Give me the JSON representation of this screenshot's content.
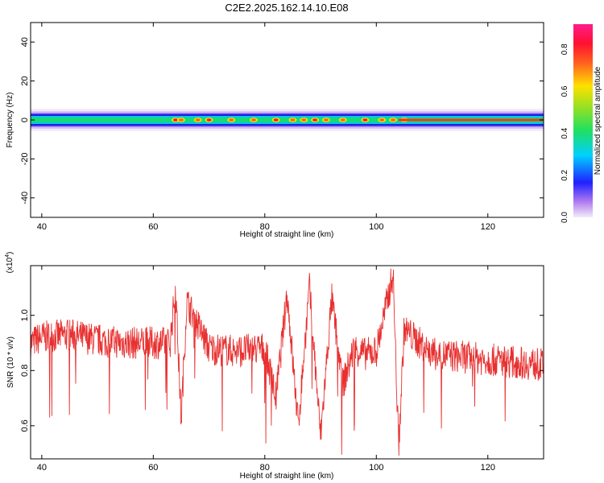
{
  "title": "C2E2.2025.162.14.10.E08",
  "chart_data": [
    {
      "type": "heatmap",
      "xlabel": "Height of straight line (km)",
      "ylabel": "Frequency (Hz)",
      "xlim": [
        38,
        130
      ],
      "ylim": [
        -50,
        50
      ],
      "xticks": [
        40,
        60,
        80,
        100,
        120
      ],
      "yticks": [
        -40,
        -20,
        0,
        20,
        40
      ],
      "colorbar": {
        "label": "Normalized spectral amplitude",
        "range": [
          0,
          0.92
        ],
        "ticks": [
          0.0,
          0.2,
          0.4,
          0.6,
          0.8
        ]
      },
      "band_halfwidth_hz": 3,
      "hotspots_km": [
        64,
        65,
        68,
        70,
        74,
        78,
        82,
        85,
        87,
        89,
        91,
        94,
        98,
        101,
        103,
        105
      ]
    },
    {
      "type": "line",
      "xlabel": "Height of straight line (km)",
      "ylabel": "SNR (10 * v/v)",
      "multiplier": "(x10",
      "multiplier_exp": "4",
      "xlim": [
        38,
        130
      ],
      "ylim": [
        0.48,
        1.18
      ],
      "xticks": [
        40,
        60,
        80,
        100,
        120
      ],
      "yticks": [
        0.6,
        0.8,
        1.0
      ],
      "series": [
        {
          "color": "#e83030",
          "x": [
            38,
            40,
            45,
            50,
            55,
            60,
            63,
            64,
            65,
            66,
            70,
            75,
            80,
            82,
            84,
            86,
            88,
            90,
            92,
            94,
            96,
            98,
            100,
            103,
            104,
            105,
            110,
            120,
            130
          ],
          "y": [
            0.9,
            0.92,
            0.93,
            0.91,
            0.9,
            0.9,
            0.9,
            1.1,
            0.62,
            1.05,
            0.88,
            0.87,
            0.88,
            0.7,
            1.08,
            0.6,
            1.1,
            0.56,
            1.06,
            0.75,
            0.88,
            0.86,
            0.87,
            1.15,
            0.52,
            0.95,
            0.86,
            0.84,
            0.82
          ]
        }
      ]
    }
  ]
}
